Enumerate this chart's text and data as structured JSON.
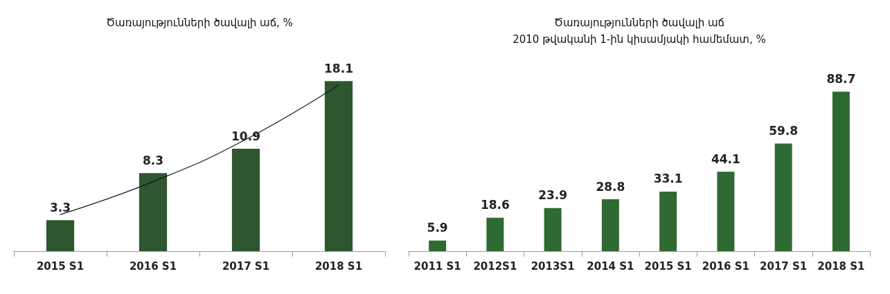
{
  "chart_data": [
    {
      "type": "bar",
      "title": "Ծառայությունների ծավալի աճ, %",
      "categories": [
        "2015 S1",
        "2016 S1",
        "2017 S1",
        "2018 S1"
      ],
      "marker": "none",
      "line_style": "solid",
      "series": [
        {
          "color": "#2e5730",
          "values": [
            3.3,
            8.3,
            10.9,
            18.1
          ],
          "value_labels": [
            "3.3",
            "8.3",
            "10.9",
            "18.1"
          ]
        },
        {
          "type": "line",
          "color": "#1a1a1a",
          "values": [
            3.9,
            7.4,
            11.9,
            17.7
          ]
        }
      ]
    },
    {
      "type": "bar",
      "title": "Ծառայությունների ծավալի աճ\n2010 թվականի 1-ին կիսամյակի համեմատ, %",
      "categories": [
        "2011 S1",
        "2012S1",
        "2013S1",
        "2014 S1",
        "2015 S1",
        "2016 S1",
        "2017 S1",
        "2018 S1"
      ],
      "data_labels": true,
      "color": "#2e6a32",
      "values": [
        5.9,
        18.6,
        23.9,
        28.8,
        33.1,
        44.1,
        59.8,
        88.7
      ]
    }
  ]
}
